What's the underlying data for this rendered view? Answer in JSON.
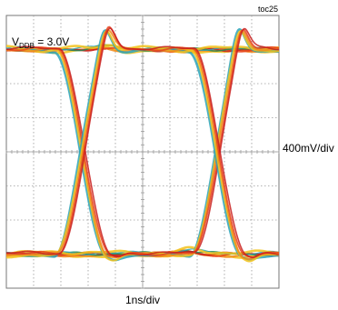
{
  "chart_data": {
    "type": "eye-diagram",
    "figure_tag": "toc25",
    "annotation": {
      "prefix": "V",
      "subscript": "DDB",
      "suffix": " = 3.0V"
    },
    "y_scale_label": "400mV/div",
    "x_scale_label": "1ns/div",
    "divisions": {
      "x": 10,
      "y": 8
    },
    "grid": true,
    "trace_colors": [
      "#1f8a5a",
      "#2aa3b8",
      "#f2c21a",
      "#f08a1c",
      "#e8431c",
      "#c81e1e"
    ],
    "levels_div": {
      "high": 7.0,
      "low": 1.0
    },
    "crossings_div": [
      2.8,
      7.75
    ],
    "overshoot_div": [
      {
        "x": 3.7,
        "level": 7.6
      },
      {
        "x": 8.6,
        "level": 7.6
      }
    ]
  }
}
